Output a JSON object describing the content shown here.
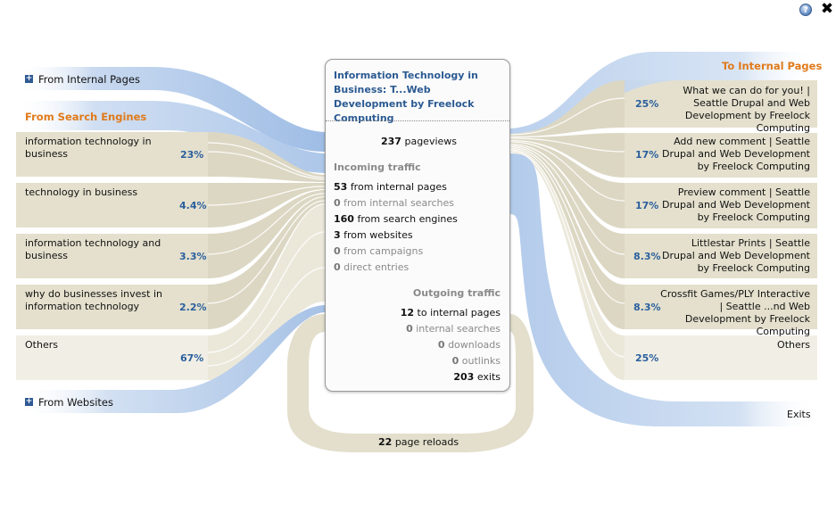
{
  "toolbar": {
    "help_icon": "help-icon",
    "close_icon": "close-icon",
    "help_glyph": "?",
    "close_glyph": "✖"
  },
  "left": {
    "internal_pages": {
      "label": "From Internal Pages",
      "icon": "plus-icon"
    },
    "search_engines": {
      "title": "From Search Engines",
      "rows": [
        {
          "label": "information technology in business",
          "pct": "23%"
        },
        {
          "label": "technology in business",
          "pct": "4.4%"
        },
        {
          "label": "information technology and business",
          "pct": "3.3%"
        },
        {
          "label": "why do businesses invest in information technology",
          "pct": "2.2%"
        },
        {
          "label": "Others",
          "pct": "67%"
        }
      ]
    },
    "websites": {
      "label": "From Websites",
      "icon": "plus-icon"
    }
  },
  "page": {
    "title": "Information Technology in Business: T...Web Development by Freelock Computing",
    "pageviews": {
      "count": "237",
      "label": "pageviews"
    },
    "incoming_title": "Incoming traffic",
    "incoming": [
      {
        "count": "53",
        "label": "from internal pages"
      },
      {
        "count": "0",
        "label": "from internal searches"
      },
      {
        "count": "160",
        "label": "from search engines"
      },
      {
        "count": "3",
        "label": "from websites"
      },
      {
        "count": "0",
        "label": "from campaigns"
      },
      {
        "count": "0",
        "label": "direct entries"
      }
    ],
    "outgoing_title": "Outgoing traffic",
    "outgoing": [
      {
        "count": "12",
        "label": "to internal pages"
      },
      {
        "count": "0",
        "label": "internal searches"
      },
      {
        "count": "0",
        "label": "downloads"
      },
      {
        "count": "0",
        "label": "outlinks"
      },
      {
        "count": "203",
        "label": "exits"
      }
    ]
  },
  "right": {
    "title": "To Internal Pages",
    "rows": [
      {
        "label": "What we can do for you! | Seattle Drupal and Web Development by Freelock Computing",
        "pct": "25%"
      },
      {
        "label": "Add new comment | Seattle Drupal and Web Development by Freelock Computing",
        "pct": "17%"
      },
      {
        "label": "Preview comment | Seattle Drupal and Web Development by Freelock Computing",
        "pct": "17%"
      },
      {
        "label": "Littlestar Prints | Seattle Drupal and Web Development by Freelock Computing",
        "pct": "8.3%"
      },
      {
        "label": "Crossfit Games/PLY Interactive | Seattle ...nd Web Development by Freelock Computing",
        "pct": "8.3%"
      },
      {
        "label": "Others",
        "pct": "25%"
      }
    ],
    "exits_label": "Exits"
  },
  "reloads": {
    "count": "22",
    "label": "page reloads"
  },
  "colors": {
    "blue_flow": "#a9c4e6",
    "beige_flow": "#dcd7c3",
    "beige_light": "#ece9db",
    "orange": "#e07a1b",
    "link_blue": "#2b5a92"
  }
}
